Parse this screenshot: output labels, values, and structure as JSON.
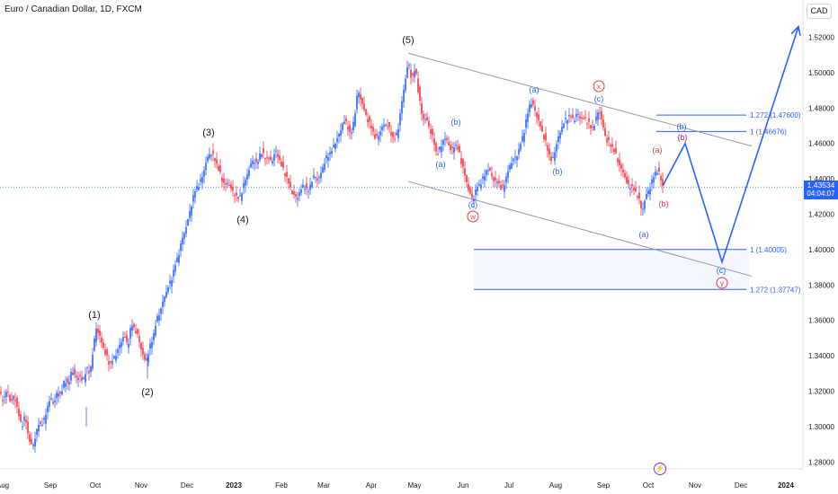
{
  "header": {
    "title": "Euro / Canadian Dollar, 1D, FXCM",
    "currency": "CAD"
  },
  "price_tag": {
    "price": "1.43534",
    "countdown": "04:04:07"
  },
  "colors": {
    "up": "#2962ff",
    "down": "#f23645",
    "wave_primary": "#131722",
    "wave_blue": "#2962ff",
    "wave_red": "#f23645",
    "channel": "#9598a1"
  },
  "chart_data": {
    "type": "candlestick",
    "title": "Euro / Canadian Dollar, 1D, FXCM",
    "ylim": [
      1.27,
      1.53
    ],
    "y_ticks": [
      "1.52000",
      "1.50000",
      "1.48000",
      "1.46000",
      "1.44000",
      "1.42000",
      "1.40000",
      "1.38000",
      "1.36000",
      "1.34000",
      "1.32000",
      "1.30000",
      "1.28000"
    ],
    "x_ticks": [
      "Aug",
      "Sep",
      "Oct",
      "Nov",
      "Dec",
      "2023",
      "Feb",
      "Mar",
      "Apr",
      "May",
      "Jun",
      "Jul",
      "Aug",
      "Sep",
      "Oct",
      "Nov",
      "Dec",
      "2024"
    ],
    "price_path": [
      [
        0,
        1.318
      ],
      [
        4,
        1.315
      ],
      [
        8,
        1.321
      ],
      [
        12,
        1.313
      ],
      [
        16,
        1.318
      ],
      [
        20,
        1.308
      ],
      [
        24,
        1.3
      ],
      [
        28,
        1.306
      ],
      [
        32,
        1.293
      ],
      [
        36,
        1.288
      ],
      [
        40,
        1.296
      ],
      [
        44,
        1.303
      ],
      [
        48,
        1.301
      ],
      [
        52,
        1.31
      ],
      [
        56,
        1.316
      ],
      [
        60,
        1.313
      ],
      [
        64,
        1.32
      ],
      [
        68,
        1.318
      ],
      [
        72,
        1.327
      ],
      [
        76,
        1.323
      ],
      [
        80,
        1.333
      ],
      [
        84,
        1.327
      ],
      [
        88,
        1.329
      ],
      [
        92,
        1.325
      ],
      [
        96,
        1.333
      ],
      [
        100,
        1.33
      ],
      [
        104,
        1.345
      ],
      [
        107,
        1.356
      ],
      [
        110,
        1.352
      ],
      [
        114,
        1.346
      ],
      [
        118,
        1.34
      ],
      [
        122,
        1.335
      ],
      [
        126,
        1.338
      ],
      [
        130,
        1.342
      ],
      [
        134,
        1.347
      ],
      [
        138,
        1.352
      ],
      [
        142,
        1.345
      ],
      [
        146,
        1.358
      ],
      [
        150,
        1.355
      ],
      [
        154,
        1.35
      ],
      [
        158,
        1.342
      ],
      [
        162,
        1.336
      ],
      [
        166,
        1.344
      ],
      [
        170,
        1.35
      ],
      [
        174,
        1.36
      ],
      [
        178,
        1.365
      ],
      [
        182,
        1.372
      ],
      [
        186,
        1.378
      ],
      [
        190,
        1.382
      ],
      [
        194,
        1.39
      ],
      [
        198,
        1.396
      ],
      [
        202,
        1.405
      ],
      [
        206,
        1.411
      ],
      [
        210,
        1.419
      ],
      [
        214,
        1.428
      ],
      [
        218,
        1.435
      ],
      [
        222,
        1.437
      ],
      [
        226,
        1.443
      ],
      [
        230,
        1.451
      ],
      [
        234,
        1.455
      ],
      [
        238,
        1.452
      ],
      [
        242,
        1.447
      ],
      [
        246,
        1.441
      ],
      [
        250,
        1.436
      ],
      [
        254,
        1.438
      ],
      [
        258,
        1.433
      ],
      [
        262,
        1.431
      ],
      [
        266,
        1.428
      ],
      [
        270,
        1.435
      ],
      [
        274,
        1.441
      ],
      [
        278,
        1.447
      ],
      [
        282,
        1.451
      ],
      [
        286,
        1.448
      ],
      [
        290,
        1.456
      ],
      [
        294,
        1.452
      ],
      [
        298,
        1.452
      ],
      [
        302,
        1.449
      ],
      [
        306,
        1.456
      ],
      [
        310,
        1.452
      ],
      [
        314,
        1.446
      ],
      [
        318,
        1.442
      ],
      [
        322,
        1.436
      ],
      [
        326,
        1.431
      ],
      [
        330,
        1.429
      ],
      [
        334,
        1.433
      ],
      [
        338,
        1.437
      ],
      [
        342,
        1.432
      ],
      [
        346,
        1.438
      ],
      [
        350,
        1.442
      ],
      [
        354,
        1.439
      ],
      [
        358,
        1.445
      ],
      [
        362,
        1.451
      ],
      [
        366,
        1.454
      ],
      [
        370,
        1.457
      ],
      [
        374,
        1.462
      ],
      [
        378,
        1.466
      ],
      [
        382,
        1.473
      ],
      [
        386,
        1.471
      ],
      [
        390,
        1.464
      ],
      [
        394,
        1.474
      ],
      [
        398,
        1.49
      ],
      [
        402,
        1.484
      ],
      [
        406,
        1.477
      ],
      [
        410,
        1.472
      ],
      [
        414,
        1.468
      ],
      [
        418,
        1.462
      ],
      [
        422,
        1.466
      ],
      [
        426,
        1.47
      ],
      [
        430,
        1.471
      ],
      [
        434,
        1.467
      ],
      [
        438,
        1.462
      ],
      [
        442,
        1.466
      ],
      [
        446,
        1.48
      ],
      [
        450,
        1.494
      ],
      [
        454,
        1.506
      ],
      [
        458,
        1.496
      ],
      [
        462,
        1.503
      ],
      [
        466,
        1.486
      ],
      [
        470,
        1.474
      ],
      [
        474,
        1.474
      ],
      [
        478,
        1.468
      ],
      [
        482,
        1.462
      ],
      [
        486,
        1.453
      ],
      [
        490,
        1.458
      ],
      [
        494,
        1.463
      ],
      [
        498,
        1.461
      ],
      [
        502,
        1.455
      ],
      [
        506,
        1.46
      ],
      [
        510,
        1.456
      ],
      [
        514,
        1.448
      ],
      [
        518,
        1.44
      ],
      [
        522,
        1.432
      ],
      [
        526,
        1.428
      ],
      [
        530,
        1.435
      ],
      [
        534,
        1.437
      ],
      [
        538,
        1.441
      ],
      [
        542,
        1.446
      ],
      [
        546,
        1.443
      ],
      [
        550,
        1.438
      ],
      [
        554,
        1.439
      ],
      [
        558,
        1.433
      ],
      [
        562,
        1.439
      ],
      [
        566,
        1.446
      ],
      [
        570,
        1.451
      ],
      [
        574,
        1.452
      ],
      [
        578,
        1.458
      ],
      [
        582,
        1.465
      ],
      [
        586,
        1.475
      ],
      [
        590,
        1.484
      ],
      [
        594,
        1.48
      ],
      [
        598,
        1.474
      ],
      [
        602,
        1.468
      ],
      [
        606,
        1.462
      ],
      [
        610,
        1.455
      ],
      [
        614,
        1.449
      ],
      [
        618,
        1.458
      ],
      [
        622,
        1.465
      ],
      [
        626,
        1.471
      ],
      [
        630,
        1.474
      ],
      [
        634,
        1.476
      ],
      [
        638,
        1.473
      ],
      [
        642,
        1.477
      ],
      [
        646,
        1.474
      ],
      [
        650,
        1.474
      ],
      [
        654,
        1.472
      ],
      [
        658,
        1.468
      ],
      [
        662,
        1.472
      ],
      [
        666,
        1.48
      ],
      [
        670,
        1.471
      ],
      [
        674,
        1.462
      ],
      [
        678,
        1.46
      ],
      [
        682,
        1.457
      ],
      [
        686,
        1.452
      ],
      [
        690,
        1.446
      ],
      [
        694,
        1.443
      ],
      [
        698,
        1.436
      ],
      [
        702,
        1.436
      ],
      [
        706,
        1.433
      ],
      [
        710,
        1.43
      ],
      [
        714,
        1.421
      ],
      [
        718,
        1.43
      ],
      [
        722,
        1.434
      ],
      [
        726,
        1.44
      ],
      [
        730,
        1.445
      ],
      [
        734,
        1.442
      ],
      [
        737,
        1.436
      ]
    ],
    "fib_levels": [
      {
        "label": "1.272 (1.47600)",
        "value": 1.476
      },
      {
        "label": "1 (1.46676)",
        "value": 1.46676
      },
      {
        "label": "1 (1.40005)",
        "value": 1.40005
      },
      {
        "label": "1.272 (1.37747)",
        "value": 1.37747
      }
    ],
    "primary_waves": [
      "(1)",
      "(2)",
      "(3)",
      "(4)",
      "(5)"
    ],
    "secondary_waves": [
      "(a)",
      "(b)",
      "(c)",
      "(a)",
      "(c)",
      "(b)",
      "(a)",
      "(b)",
      "(c)",
      "(b)",
      "(c)"
    ],
    "circle_labels": [
      "w",
      "x",
      "y"
    ],
    "red_labels": [
      "(a)",
      "(b)",
      "(c)"
    ],
    "projection_path": [
      [
        737,
        1.436
      ],
      [
        762,
        1.46
      ],
      [
        803,
        1.393
      ],
      [
        888,
        1.526
      ]
    ]
  }
}
